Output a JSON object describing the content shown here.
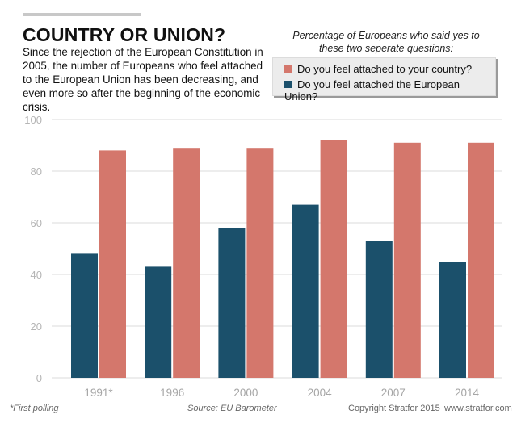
{
  "header": {
    "title": "COUNTRY OR UNION?",
    "subtitle": "Since the rejection of the European Constitution in 2005, the number of Europeans who feel attached to the European Union has been decreasing, and even more so after the beginning of the economic crisis."
  },
  "legend": {
    "title": "Percentage of Europeans who said yes to these two seperate questions:",
    "items": [
      {
        "label": "Do you feel attached to your country?",
        "color": "#d4776c"
      },
      {
        "label": "Do you feel attached the European Union?",
        "color": "#1b506b"
      }
    ]
  },
  "chart_data": {
    "type": "bar",
    "categories": [
      "1991*",
      "1996",
      "2000",
      "2004",
      "2007",
      "2014"
    ],
    "series": [
      {
        "name": "Do you feel attached the European Union?",
        "color": "#1b506b",
        "values": [
          48,
          43,
          58,
          67,
          53,
          45
        ]
      },
      {
        "name": "Do you feel attached to your country?",
        "color": "#d4776c",
        "values": [
          88,
          89,
          89,
          92,
          91,
          91
        ]
      }
    ],
    "yticks": [
      0,
      20,
      40,
      60,
      80,
      100
    ],
    "ylim": [
      0,
      100
    ],
    "grid": true,
    "xlabel": "",
    "ylabel": ""
  },
  "footer": {
    "footnote": "*First polling",
    "source": "Source: EU Barometer",
    "copyright": "Copyright Stratfor 2015",
    "website": "www.stratfor.com"
  }
}
